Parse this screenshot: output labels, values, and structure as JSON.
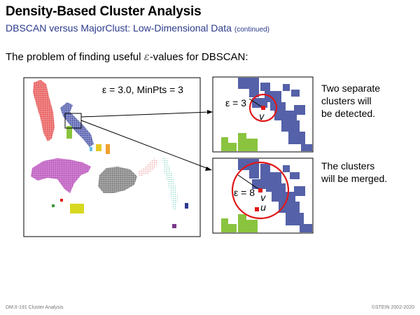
{
  "slide": {
    "title": "Density-Based Cluster Analysis",
    "subtitle": "DBSCAN versus MajorClust: Low-Dimensional Data",
    "subtitle_note": "(continued)",
    "problem_text_pre": "The problem of finding useful ",
    "problem_eps": "ε",
    "problem_text_post": "-values for DBSCAN:"
  },
  "main_plot": {
    "label": "ε = 3.0, MinPts = 3"
  },
  "zoom_top": {
    "label": "ε = 3",
    "point": "v",
    "caption": [
      "Two separate",
      "clusters will",
      "be detected."
    ]
  },
  "zoom_bottom": {
    "label": "ε = 8",
    "point_v": "v",
    "point_u": "u",
    "caption": [
      "The clusters",
      "will be merged."
    ]
  },
  "footer": {
    "left": "DM:II-191   Cluster Analysis",
    "right": "©STEIN 2002-2020"
  },
  "colors": {
    "title_blue": "#2b3a8c",
    "cluster_blue": "#5561a8",
    "cluster_green": "#8ac43f",
    "cluster_red": "#f06464",
    "ring_red": "#e01818"
  }
}
